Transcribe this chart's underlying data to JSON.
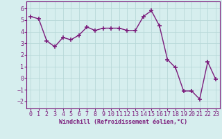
{
  "x": [
    0,
    1,
    2,
    3,
    4,
    5,
    6,
    7,
    8,
    9,
    10,
    11,
    12,
    13,
    14,
    15,
    16,
    17,
    18,
    19,
    20,
    21,
    22,
    23
  ],
  "y": [
    5.3,
    5.1,
    3.2,
    2.7,
    3.5,
    3.3,
    3.7,
    4.4,
    4.1,
    4.3,
    4.3,
    4.3,
    4.1,
    4.1,
    5.3,
    5.8,
    4.5,
    1.6,
    0.9,
    -1.1,
    -1.1,
    -1.8,
    1.4,
    -0.1
  ],
  "line_color": "#7B1B7B",
  "marker": "+",
  "marker_size": 5,
  "marker_linewidth": 1.2,
  "line_width": 1.0,
  "bg_color": "#d6eeee",
  "grid_color": "#b8d8d8",
  "xlabel": "Windchill (Refroidissement éolien,°C)",
  "xlabel_color": "#7B1B7B",
  "xlabel_fontsize": 6.0,
  "tick_color": "#7B1B7B",
  "tick_fontsize": 6.0,
  "xlim": [
    -0.5,
    23.5
  ],
  "ylim": [
    -2.6,
    6.6
  ],
  "yticks": [
    -2,
    -1,
    0,
    1,
    2,
    3,
    4,
    5,
    6
  ],
  "xticks": [
    0,
    1,
    2,
    3,
    4,
    5,
    6,
    7,
    8,
    9,
    10,
    11,
    12,
    13,
    14,
    15,
    16,
    17,
    18,
    19,
    20,
    21,
    22,
    23
  ]
}
